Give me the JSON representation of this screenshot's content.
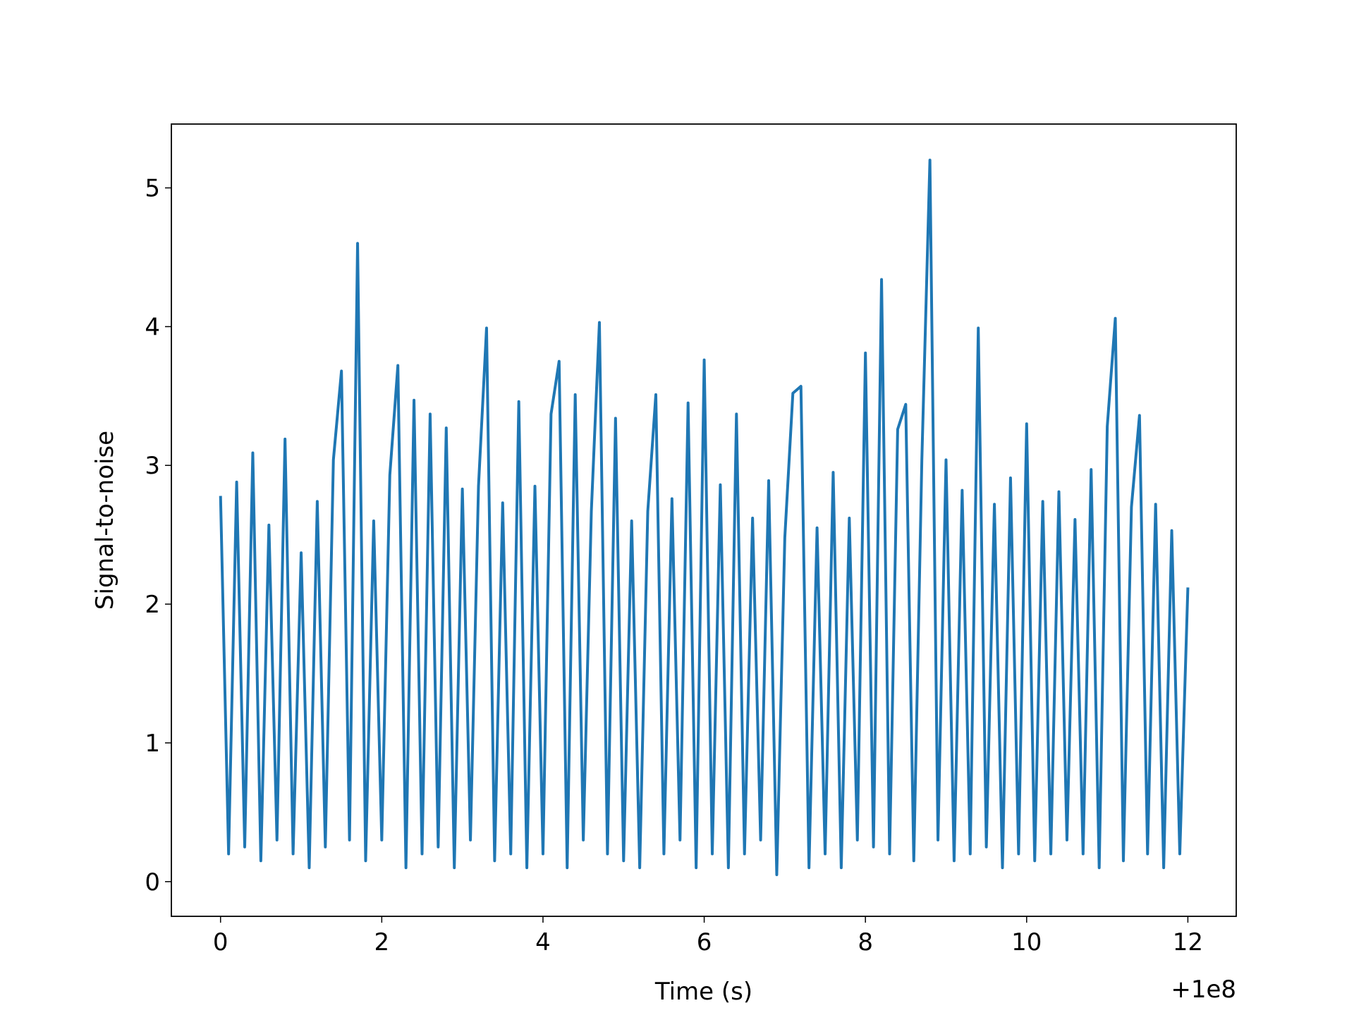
{
  "chart_data": {
    "type": "line",
    "xlabel": "Time (s)",
    "ylabel": "Signal-to-noise",
    "x_offset_label": "+1e8",
    "x": [
      0,
      0.1,
      0.2,
      0.3,
      0.4,
      0.5,
      0.6,
      0.7,
      0.8,
      0.9,
      1,
      1.1,
      1.2,
      1.3,
      1.4,
      1.5,
      1.6,
      1.7,
      1.8,
      1.9,
      2,
      2.1,
      2.2,
      2.3,
      2.4,
      2.5,
      2.6,
      2.7,
      2.8,
      2.9,
      3,
      3.1,
      3.2,
      3.3,
      3.4,
      3.5,
      3.6,
      3.7,
      3.8,
      3.9,
      4,
      4.1,
      4.2,
      4.3,
      4.4,
      4.5,
      4.6,
      4.7,
      4.8,
      4.9,
      5,
      5.1,
      5.2,
      5.3,
      5.4,
      5.5,
      5.6,
      5.7,
      5.8,
      5.9,
      6,
      6.1,
      6.2,
      6.3,
      6.4,
      6.5,
      6.6,
      6.7,
      6.8,
      6.9,
      7,
      7.1,
      7.2,
      7.3,
      7.4,
      7.5,
      7.6,
      7.7,
      7.8,
      7.9,
      8,
      8.1,
      8.2,
      8.3,
      8.4,
      8.5,
      8.6,
      8.7,
      8.8,
      8.9,
      9,
      9.1,
      9.2,
      9.3,
      9.4,
      9.5,
      9.6,
      9.7,
      9.8,
      9.9,
      10,
      10.1,
      10.2,
      10.3,
      10.4,
      10.5,
      10.6,
      10.7,
      10.8,
      10.9,
      11,
      11.1,
      11.2,
      11.3,
      11.4,
      11.5,
      11.6,
      11.7,
      11.8,
      11.9,
      12
    ],
    "series": [
      {
        "color": "#1f77b4",
        "values": [
          2.78,
          0.2,
          2.88,
          0.25,
          3.09,
          0.15,
          2.57,
          0.3,
          3.19,
          0.2,
          2.37,
          0.1,
          2.74,
          0.25,
          3.04,
          3.68,
          0.3,
          4.6,
          0.15,
          2.6,
          0.3,
          2.93,
          3.72,
          0.1,
          3.47,
          0.2,
          3.37,
          0.25,
          3.27,
          0.1,
          2.83,
          0.3,
          2.85,
          3.99,
          0.15,
          2.73,
          0.2,
          3.46,
          0.1,
          2.85,
          0.2,
          3.37,
          3.75,
          0.1,
          3.51,
          0.3,
          2.67,
          4.03,
          0.2,
          3.34,
          0.15,
          2.6,
          0.1,
          2.67,
          3.51,
          0.2,
          2.76,
          0.3,
          3.45,
          0.1,
          3.76,
          0.2,
          2.86,
          0.1,
          3.37,
          0.2,
          2.62,
          0.3,
          2.89,
          0.05,
          2.48,
          3.52,
          3.57,
          0.1,
          2.55,
          0.2,
          2.95,
          0.1,
          2.62,
          0.3,
          3.81,
          0.25,
          4.34,
          0.2,
          3.26,
          3.44,
          0.15,
          3.04,
          5.2,
          0.3,
          3.04,
          0.15,
          2.82,
          0.2,
          3.99,
          0.25,
          2.72,
          0.1,
          2.91,
          0.2,
          3.3,
          0.15,
          2.74,
          0.2,
          2.81,
          0.3,
          2.61,
          0.2,
          2.97,
          0.1,
          3.28,
          4.06,
          0.15,
          2.7,
          3.36,
          0.2,
          2.72,
          0.1,
          2.53,
          0.2,
          2.12
        ]
      }
    ],
    "xlim": [
      -0.61,
      12.6
    ],
    "ylim": [
      -0.25,
      5.46
    ],
    "xticks": [
      0,
      2,
      4,
      6,
      8,
      10,
      12
    ],
    "yticks": [
      0,
      1,
      2,
      3,
      4,
      5
    ]
  }
}
